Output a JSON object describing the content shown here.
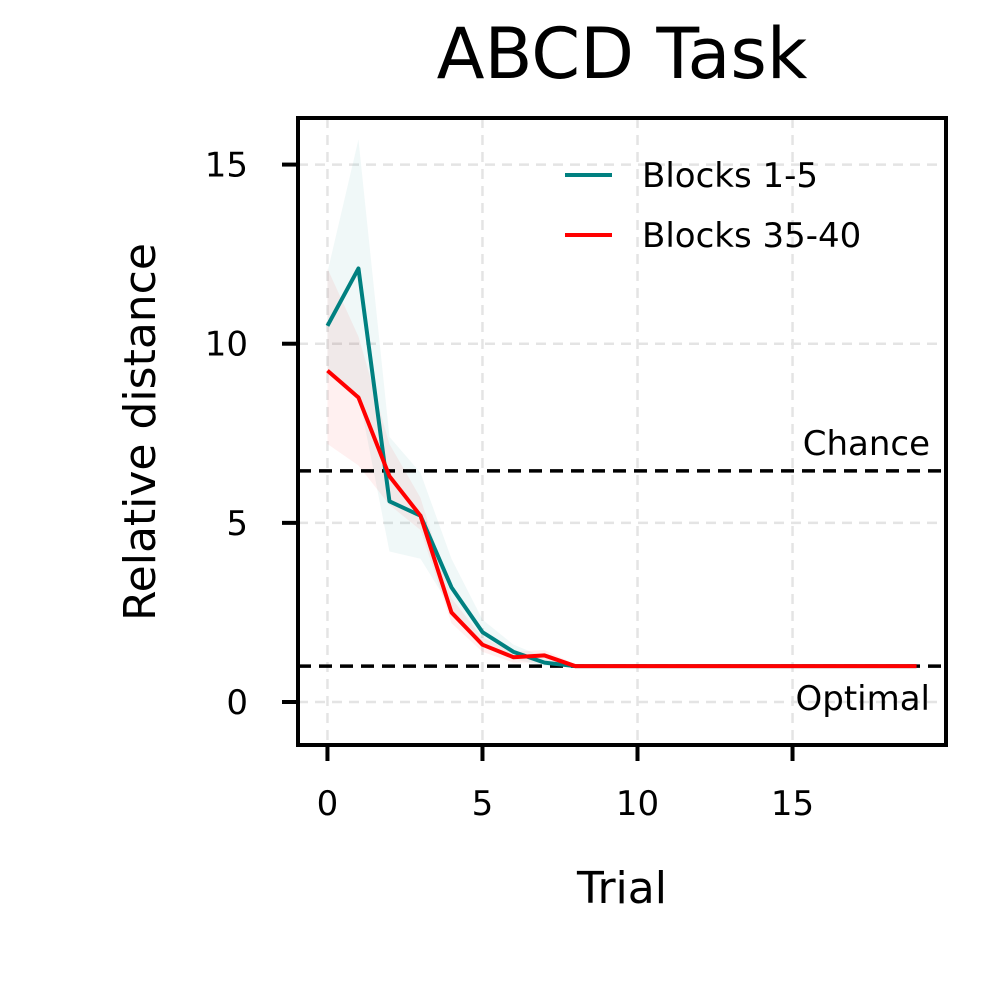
{
  "chart_data": {
    "type": "line",
    "title": "ABCD Task",
    "xlabel": "Trial",
    "ylabel": "Relative distance",
    "xlim": [
      -0.95,
      19.95
    ],
    "ylim": [
      -1.2,
      16.3
    ],
    "xticks": [
      0,
      5,
      10,
      15
    ],
    "yticks": [
      0,
      5,
      10,
      15
    ],
    "grid": true,
    "legend_position": "top-right",
    "series": [
      {
        "name": "Blocks 1-5",
        "color": "#008080",
        "x": [
          0,
          1,
          2,
          3,
          4,
          5,
          6,
          7,
          8,
          9,
          10,
          11,
          12,
          13,
          14,
          15,
          16,
          17,
          18,
          19
        ],
        "y": [
          10.5,
          12.1,
          5.6,
          5.2,
          3.2,
          1.95,
          1.4,
          1.1,
          1.0,
          1.0,
          1.0,
          1.0,
          1.0,
          1.0,
          1.0,
          1.0,
          1.0,
          1.0,
          1.0,
          1.0
        ],
        "lower": [
          9.2,
          8.6,
          4.2,
          4.0,
          2.6,
          1.6,
          1.2,
          1.0,
          1.0,
          1.0,
          1.0,
          1.0,
          1.0,
          1.0,
          1.0,
          1.0,
          1.0,
          1.0,
          1.0,
          1.0
        ],
        "upper": [
          12.0,
          15.7,
          7.4,
          6.4,
          4.0,
          2.3,
          1.6,
          1.25,
          1.05,
          1.02,
          1.02,
          1.02,
          1.02,
          1.02,
          1.02,
          1.02,
          1.02,
          1.02,
          1.02,
          1.02
        ]
      },
      {
        "name": "Blocks 35-40",
        "color": "#ff0000",
        "x": [
          0,
          1,
          2,
          3,
          4,
          5,
          6,
          7,
          8,
          9,
          10,
          11,
          12,
          13,
          14,
          15,
          16,
          17,
          18,
          19
        ],
        "y": [
          9.25,
          8.5,
          6.3,
          5.2,
          2.5,
          1.6,
          1.25,
          1.3,
          1.0,
          1.0,
          1.0,
          1.0,
          1.0,
          1.0,
          1.0,
          1.0,
          1.0,
          1.0,
          1.0,
          1.0
        ],
        "lower": [
          7.2,
          6.6,
          5.5,
          4.8,
          2.2,
          1.4,
          1.1,
          1.1,
          1.0,
          1.0,
          1.0,
          1.0,
          1.0,
          1.0,
          1.0,
          1.0,
          1.0,
          1.0,
          1.0,
          1.0
        ],
        "upper": [
          12.1,
          10.2,
          7.2,
          5.7,
          2.9,
          1.8,
          1.4,
          1.45,
          1.05,
          1.02,
          1.02,
          1.02,
          1.02,
          1.02,
          1.02,
          1.02,
          1.02,
          1.02,
          1.02,
          1.02
        ]
      }
    ],
    "reference_lines": [
      {
        "label": "Chance",
        "y": 6.45,
        "label_position": "above"
      },
      {
        "label": "Optimal",
        "y": 1.0,
        "label_position": "below"
      }
    ]
  }
}
